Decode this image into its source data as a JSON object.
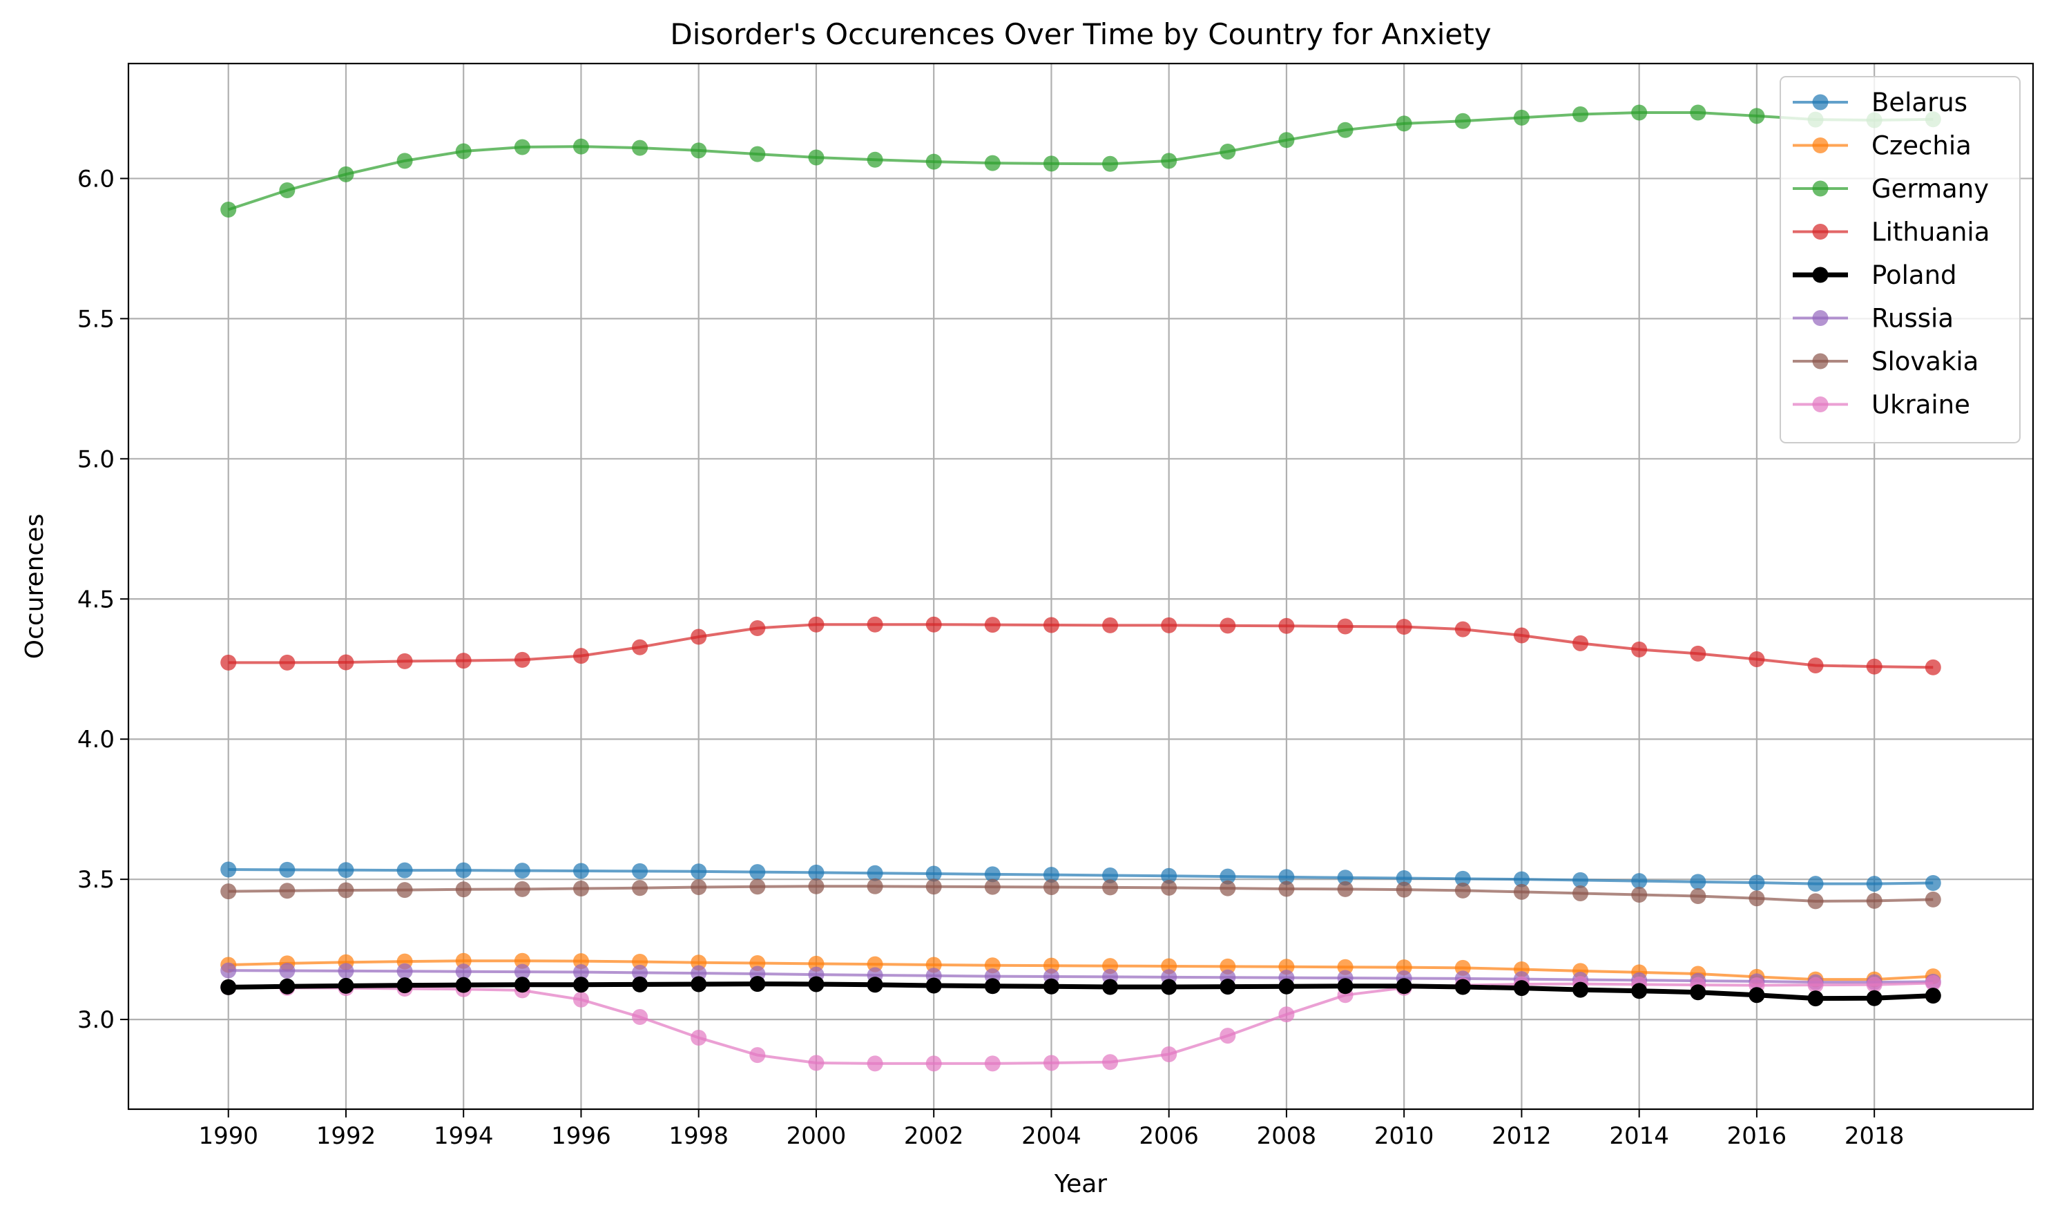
{
  "chart_data": {
    "type": "line",
    "title": "Disorder's Occurences Over Time by Country for Anxiety",
    "xlabel": "Year",
    "ylabel": "Occurences",
    "xlim": [
      1988.3,
      2020.7
    ],
    "ylim": [
      2.68,
      6.41
    ],
    "x_ticks": [
      1990,
      1992,
      1994,
      1996,
      1998,
      2000,
      2002,
      2004,
      2006,
      2008,
      2010,
      2012,
      2014,
      2016,
      2018
    ],
    "y_ticks": [
      3.0,
      3.5,
      4.0,
      4.5,
      5.0,
      5.5,
      6.0
    ],
    "grid": true,
    "legend_position": "top-right",
    "x": [
      1990,
      1991,
      1992,
      1993,
      1994,
      1995,
      1996,
      1997,
      1998,
      1999,
      2000,
      2001,
      2002,
      2003,
      2004,
      2005,
      2006,
      2007,
      2008,
      2009,
      2010,
      2011,
      2012,
      2013,
      2014,
      2015,
      2016,
      2017,
      2018,
      2019
    ],
    "series": [
      {
        "name": "Belarus",
        "color": "#1f77b4",
        "emphasis": false,
        "values": [
          3.535,
          3.534,
          3.533,
          3.532,
          3.532,
          3.531,
          3.53,
          3.529,
          3.528,
          3.526,
          3.524,
          3.522,
          3.52,
          3.518,
          3.516,
          3.514,
          3.512,
          3.51,
          3.508,
          3.506,
          3.504,
          3.502,
          3.5,
          3.497,
          3.494,
          3.491,
          3.488,
          3.484,
          3.484,
          3.487
        ]
      },
      {
        "name": "Czechia",
        "color": "#ff7f0e",
        "emphasis": false,
        "values": [
          3.195,
          3.2,
          3.204,
          3.207,
          3.209,
          3.209,
          3.208,
          3.206,
          3.203,
          3.201,
          3.199,
          3.197,
          3.195,
          3.193,
          3.192,
          3.191,
          3.19,
          3.189,
          3.188,
          3.187,
          3.186,
          3.184,
          3.179,
          3.173,
          3.168,
          3.163,
          3.152,
          3.143,
          3.143,
          3.154
        ]
      },
      {
        "name": "Germany",
        "color": "#2ca02c",
        "emphasis": false,
        "values": [
          5.889,
          5.958,
          6.015,
          6.063,
          6.097,
          6.112,
          6.114,
          6.109,
          6.1,
          6.087,
          6.075,
          6.067,
          6.06,
          6.055,
          6.053,
          6.052,
          6.063,
          6.096,
          6.137,
          6.173,
          6.196,
          6.205,
          6.217,
          6.229,
          6.235,
          6.235,
          6.223,
          6.21,
          6.208,
          6.211
        ]
      },
      {
        "name": "Lithuania",
        "color": "#d62728",
        "emphasis": false,
        "values": [
          4.273,
          4.273,
          4.274,
          4.278,
          4.28,
          4.283,
          4.297,
          4.328,
          4.365,
          4.396,
          4.409,
          4.409,
          4.409,
          4.408,
          4.407,
          4.406,
          4.406,
          4.405,
          4.404,
          4.402,
          4.401,
          4.392,
          4.37,
          4.342,
          4.32,
          4.305,
          4.285,
          4.263,
          4.259,
          4.256
        ]
      },
      {
        "name": "Poland",
        "color": "#000000",
        "emphasis": true,
        "values": [
          3.115,
          3.118,
          3.12,
          3.122,
          3.123,
          3.124,
          3.124,
          3.125,
          3.126,
          3.127,
          3.126,
          3.124,
          3.121,
          3.119,
          3.118,
          3.116,
          3.116,
          3.117,
          3.118,
          3.119,
          3.119,
          3.116,
          3.112,
          3.106,
          3.102,
          3.097,
          3.087,
          3.075,
          3.076,
          3.085
        ]
      },
      {
        "name": "Russia",
        "color": "#9467bd",
        "emphasis": false,
        "values": [
          3.175,
          3.174,
          3.173,
          3.172,
          3.171,
          3.17,
          3.169,
          3.167,
          3.165,
          3.163,
          3.16,
          3.158,
          3.156,
          3.154,
          3.153,
          3.152,
          3.151,
          3.15,
          3.149,
          3.148,
          3.147,
          3.146,
          3.144,
          3.142,
          3.14,
          3.138,
          3.136,
          3.133,
          3.133,
          3.135
        ]
      },
      {
        "name": "Slovakia",
        "color": "#8c564b",
        "emphasis": false,
        "values": [
          3.457,
          3.459,
          3.461,
          3.462,
          3.464,
          3.465,
          3.467,
          3.469,
          3.472,
          3.474,
          3.475,
          3.475,
          3.474,
          3.473,
          3.472,
          3.471,
          3.47,
          3.468,
          3.466,
          3.465,
          3.463,
          3.46,
          3.455,
          3.45,
          3.445,
          3.44,
          3.432,
          3.422,
          3.423,
          3.428
        ]
      },
      {
        "name": "Ukraine",
        "color": "#e377c2",
        "emphasis": false,
        "values": [
          3.115,
          3.113,
          3.112,
          3.11,
          3.108,
          3.104,
          3.071,
          3.009,
          2.935,
          2.873,
          2.845,
          2.843,
          2.843,
          2.843,
          2.845,
          2.848,
          2.876,
          2.942,
          3.018,
          3.087,
          3.113,
          3.122,
          3.126,
          3.127,
          3.125,
          3.123,
          3.122,
          3.123,
          3.124,
          3.13
        ]
      }
    ]
  }
}
